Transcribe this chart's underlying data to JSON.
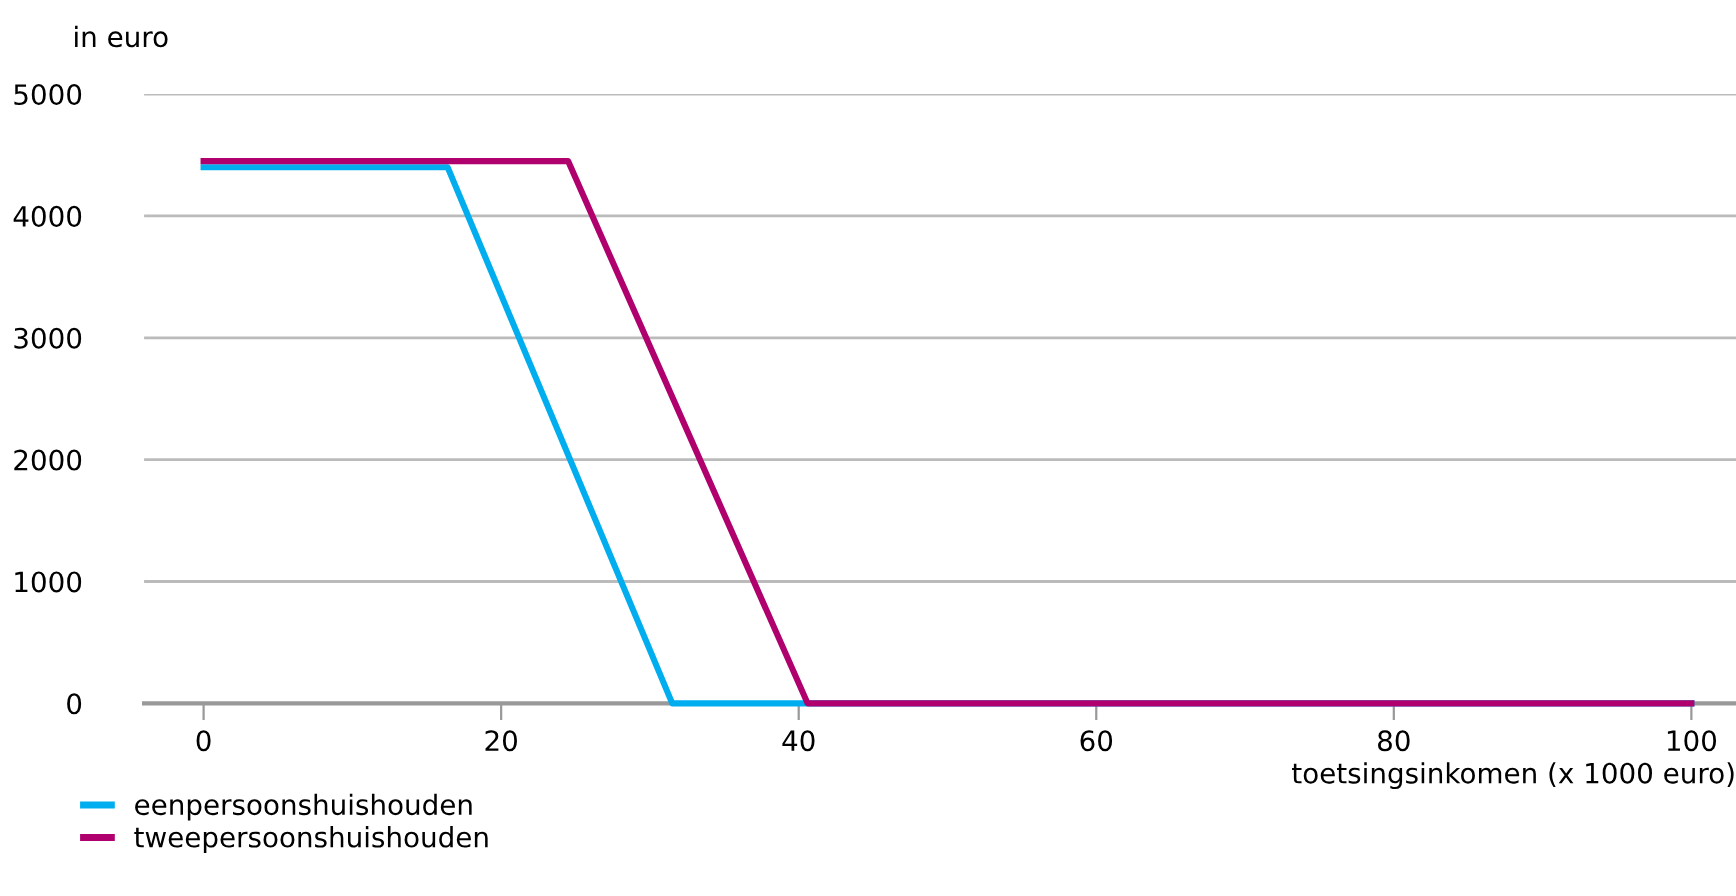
{
  "chart_data": {
    "type": "line",
    "ylabel": "in euro",
    "xlabel": "toetsingsinkomen (x 1000 euro)",
    "xlim": [
      -4,
      103
    ],
    "ylim": [
      0,
      5000
    ],
    "xticks": [
      0,
      20,
      40,
      60,
      80,
      100
    ],
    "yticks": [
      0,
      1000,
      2000,
      3000,
      4000,
      5000
    ],
    "grid": "y",
    "legend": "bottom",
    "marker": "none",
    "line_style": "solid",
    "series": [
      {
        "name": "eenpersoonshuishouden",
        "color": "#00aeef",
        "x": [
          0,
          16.4,
          31.5,
          100
        ],
        "values": [
          4400,
          4400,
          0,
          0
        ]
      },
      {
        "name": "tweepersoonshuishouden",
        "color": "#b0006e",
        "x": [
          0,
          24.5,
          40.6,
          100
        ],
        "values": [
          4450,
          4450,
          0,
          0
        ]
      }
    ]
  }
}
